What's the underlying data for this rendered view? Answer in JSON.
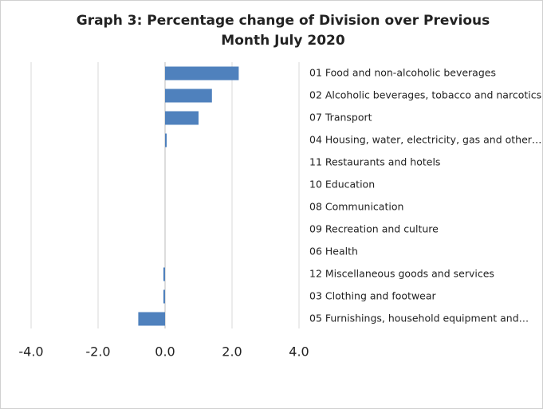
{
  "chart_data": {
    "type": "bar",
    "orientation": "horizontal",
    "title": "Graph 3: Percentage change of Division over Previous Month July 2020",
    "categories": [
      "01 Food and non-alcoholic beverages",
      "02 Alcoholic beverages, tobacco and narcotics",
      "07 Transport",
      "04 Housing, water, electricity, gas and other…",
      "11 Restaurants and hotels",
      "10 Education",
      "08 Communication",
      "09 Recreation and culture",
      "06 Health",
      "12 Miscellaneous goods and services",
      "03 Clothing and footwear",
      "05 Furnishings, household equipment and…"
    ],
    "values": [
      2.2,
      1.4,
      1.0,
      0.05,
      0,
      0,
      0,
      0,
      0,
      -0.05,
      -0.05,
      -0.8
    ],
    "color": "#4f81bd",
    "xlim": [
      -4,
      4
    ],
    "xticks": [
      {
        "value": -4,
        "label": "-4.0"
      },
      {
        "value": -2,
        "label": "-2.0"
      },
      {
        "value": 0,
        "label": "0.0"
      },
      {
        "value": 2,
        "label": "2.0"
      },
      {
        "value": 4,
        "label": "4.0"
      }
    ],
    "grid": true
  }
}
